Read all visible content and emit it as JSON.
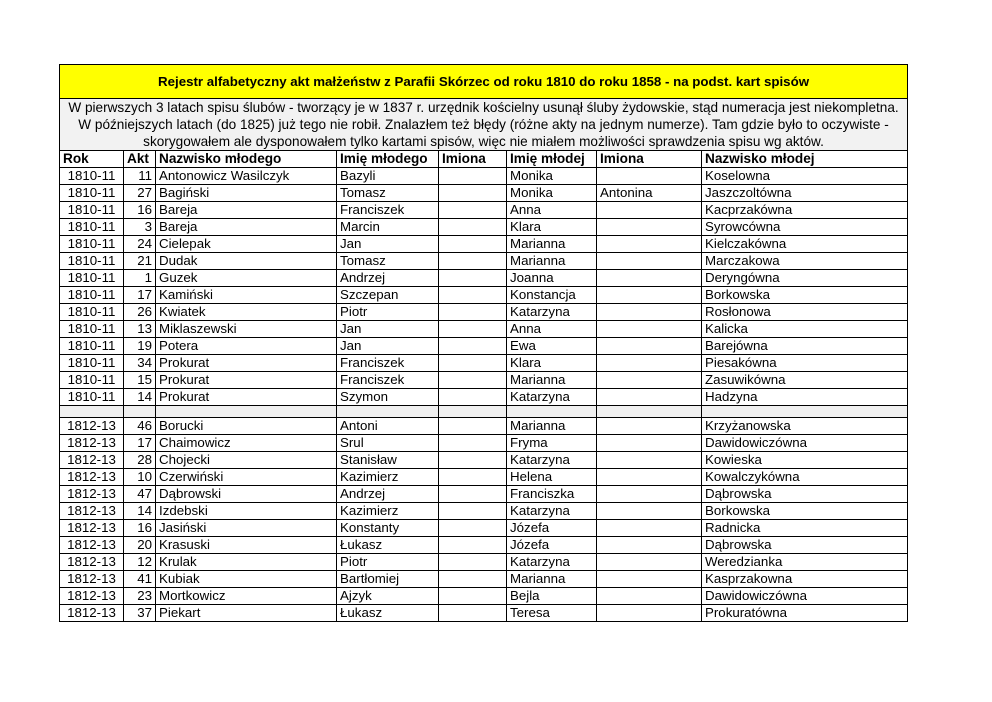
{
  "title": "Rejestr alfabetyczny akt małżeństw z Parafii Skórzec od roku 1810 do roku 1858 - na podst. kart spisów",
  "note": "W pierwszych 3 latach spisu ślubów - tworzący je w 1837 r. urzędnik kościelny usunął śluby żydowskie, stąd numeracja jest niekompletna. W późniejszych latach (do 1825) już tego nie robił. Znalazłem też błędy (różne akty na jednym numerze). Tam gdzie było to oczywiste - skorygowałem ale dysponowałem tylko kartami spisów, więc nie miałem możliwości sprawdzenia spisu wg aktów.",
  "columns": [
    "Rok",
    "Akt",
    "Nazwisko młodego",
    "Imię młodego",
    "Imiona",
    "Imię młodej",
    "Imiona",
    "Nazwisko młodej"
  ],
  "groups": [
    [
      [
        "1810-11",
        "11",
        "Antonowicz Wasilczyk",
        "Bazyli",
        "",
        "Monika",
        "",
        "Koselowna"
      ],
      [
        "1810-11",
        "27",
        "Bagiński",
        "Tomasz",
        "",
        "Monika",
        "Antonina",
        "Jaszczoltówna"
      ],
      [
        "1810-11",
        "16",
        "Bareja",
        "Franciszek",
        "",
        "Anna",
        "",
        "Kacprzakówna"
      ],
      [
        "1810-11",
        "3",
        "Bareja",
        "Marcin",
        "",
        "Klara",
        "",
        "Syrowcówna"
      ],
      [
        "1810-11",
        "24",
        "Cielepak",
        "Jan",
        "",
        "Marianna",
        "",
        "Kielczakówna"
      ],
      [
        "1810-11",
        "21",
        "Dudak",
        "Tomasz",
        "",
        "Marianna",
        "",
        "Marczakowa"
      ],
      [
        "1810-11",
        "1",
        "Guzek",
        "Andrzej",
        "",
        "Joanna",
        "",
        "Deryngówna"
      ],
      [
        "1810-11",
        "17",
        "Kamiński",
        "Szczepan",
        "",
        "Konstancja",
        "",
        "Borkowska"
      ],
      [
        "1810-11",
        "26",
        "Kwiatek",
        "Piotr",
        "",
        "Katarzyna",
        "",
        "Rosłonowa"
      ],
      [
        "1810-11",
        "13",
        "Miklaszewski",
        "Jan",
        "",
        "Anna",
        "",
        "Kalicka"
      ],
      [
        "1810-11",
        "19",
        "Potera",
        "Jan",
        "",
        "Ewa",
        "",
        "Barejówna"
      ],
      [
        "1810-11",
        "34",
        "Prokurat",
        "Franciszek",
        "",
        "Klara",
        "",
        "Piesakówna"
      ],
      [
        "1810-11",
        "15",
        "Prokurat",
        "Franciszek",
        "",
        "Marianna",
        "",
        "Zasuwikówna"
      ],
      [
        "1810-11",
        "14",
        "Prokurat",
        "Szymon",
        "",
        "Katarzyna",
        "",
        "Hadzyna"
      ]
    ],
    [
      [
        "1812-13",
        "46",
        "Borucki",
        "Antoni",
        "",
        "Marianna",
        "",
        "Krzyżanowska"
      ],
      [
        "1812-13",
        "17",
        "Chaimowicz",
        "Srul",
        "",
        "Fryma",
        "",
        "Dawidowiczówna"
      ],
      [
        "1812-13",
        "28",
        "Chojecki",
        "Stanisław",
        "",
        "Katarzyna",
        "",
        "Kowieska"
      ],
      [
        "1812-13",
        "10",
        "Czerwiński",
        "Kazimierz",
        "",
        "Helena",
        "",
        "Kowalczykówna"
      ],
      [
        "1812-13",
        "47",
        "Dąbrowski",
        "Andrzej",
        "",
        "Franciszka",
        "",
        "Dąbrowska"
      ],
      [
        "1812-13",
        "14",
        "Izdebski",
        "Kazimierz",
        "",
        "Katarzyna",
        "",
        "Borkowska"
      ],
      [
        "1812-13",
        "16",
        "Jasiński",
        "Konstanty",
        "",
        "Józefa",
        "",
        "Radnicka"
      ],
      [
        "1812-13",
        "20",
        "Krasuski",
        "Łukasz",
        "",
        "Józefa",
        "",
        "Dąbrowska"
      ],
      [
        "1812-13",
        "12",
        "Krulak",
        "Piotr",
        "",
        "Katarzyna",
        "",
        "Weredzianka"
      ],
      [
        "1812-13",
        "41",
        "Kubiak",
        "Bartłomiej",
        "",
        "Marianna",
        "",
        "Kasprzakowna"
      ],
      [
        "1812-13",
        "23",
        "Mortkowicz",
        "Ajzyk",
        "",
        "Bejla",
        "",
        "Dawidowiczówna"
      ],
      [
        "1812-13",
        "37",
        "Piekart",
        "Łukasz",
        "",
        "Teresa",
        "",
        "Prokuratówna"
      ]
    ]
  ],
  "colors": {
    "title_bg": "#ffff00",
    "note_bg": "#f2f2f2"
  }
}
